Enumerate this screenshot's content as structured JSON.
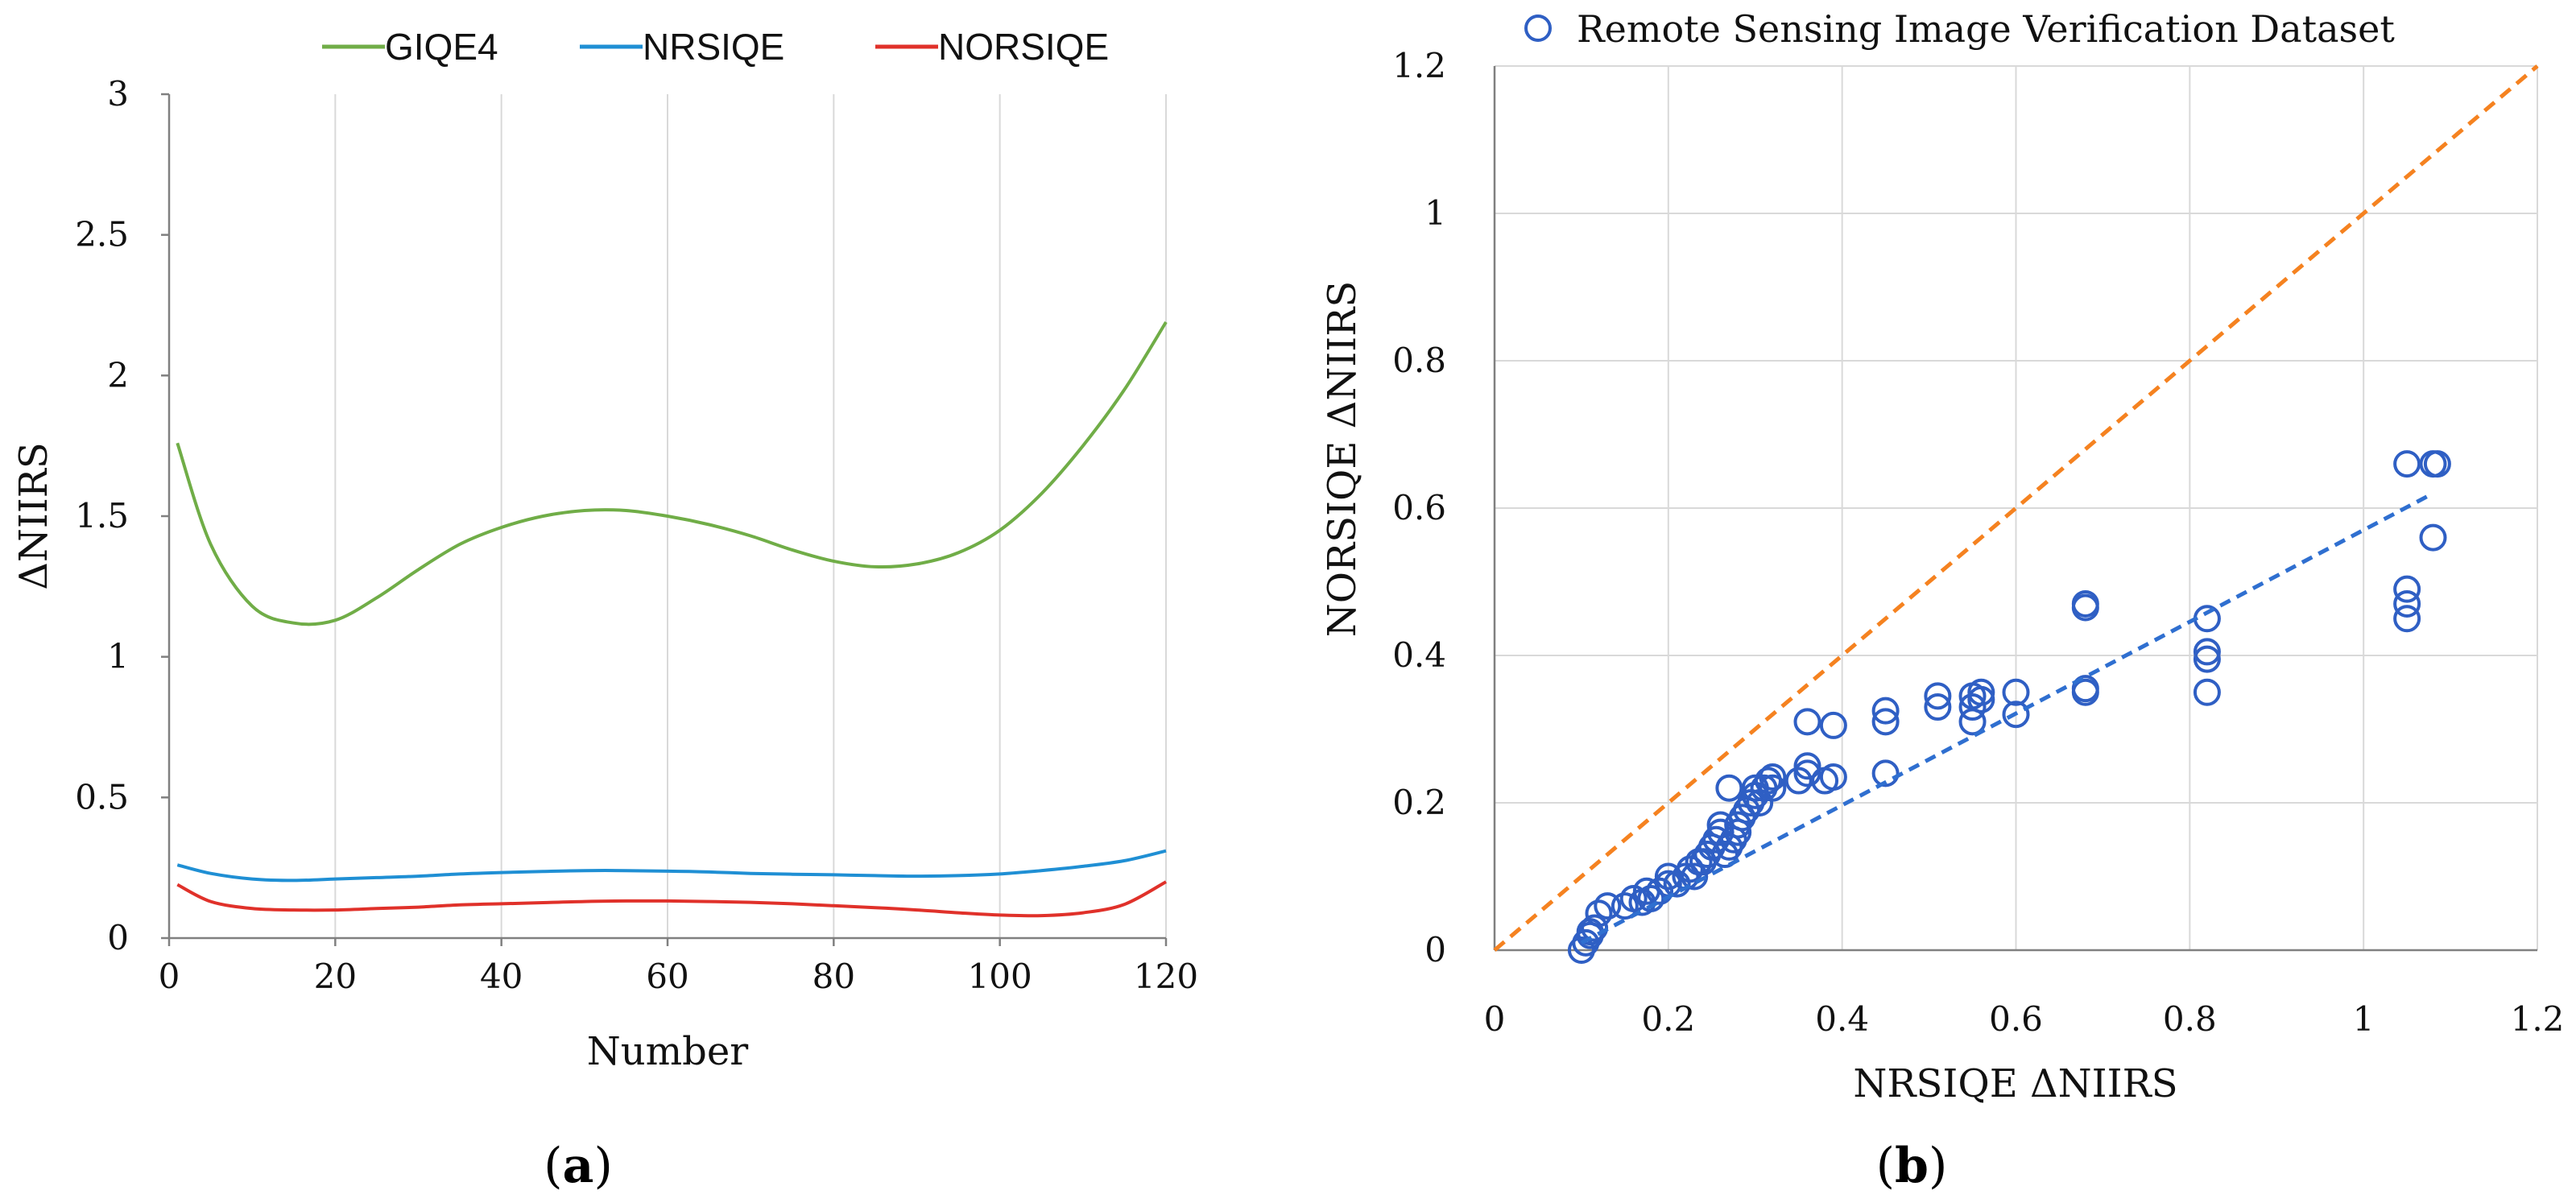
{
  "chart_data": [
    {
      "type": "line",
      "panel_label_open": "(",
      "panel_label_letter": "a",
      "panel_label_close": ")",
      "title": "",
      "xlabel": "Number",
      "ylabel": "ΔNIIRS",
      "xlim": [
        0,
        120
      ],
      "ylim": [
        0,
        3
      ],
      "xticks": [
        0,
        20,
        40,
        60,
        80,
        100,
        120
      ],
      "xtick_labels": [
        "0",
        "20",
        "40",
        "60",
        "80",
        "100",
        "120"
      ],
      "yticks": [
        0,
        0.5,
        1,
        1.5,
        2,
        2.5,
        3
      ],
      "ytick_labels": [
        "0",
        "0.5",
        "1",
        "1.5",
        "2",
        "2.5",
        "3"
      ],
      "grid": "vertical",
      "legend_position": "top",
      "x": [
        1,
        5,
        10,
        15,
        20,
        25,
        30,
        35,
        40,
        45,
        50,
        55,
        60,
        65,
        70,
        75,
        80,
        85,
        90,
        95,
        100,
        105,
        110,
        115,
        120
      ],
      "series": [
        {
          "name": "GIQE4",
          "color": "#70ad47",
          "values": [
            1.76,
            1.4,
            1.18,
            1.12,
            1.13,
            1.21,
            1.31,
            1.4,
            1.46,
            1.5,
            1.52,
            1.52,
            1.5,
            1.47,
            1.43,
            1.38,
            1.34,
            1.32,
            1.33,
            1.37,
            1.45,
            1.58,
            1.75,
            1.95,
            2.19
          ]
        },
        {
          "name": "NRSIQE",
          "color": "#1f8fd4",
          "values": [
            0.26,
            0.23,
            0.21,
            0.205,
            0.21,
            0.215,
            0.22,
            0.228,
            0.233,
            0.237,
            0.24,
            0.24,
            0.238,
            0.235,
            0.23,
            0.227,
            0.225,
            0.222,
            0.22,
            0.222,
            0.228,
            0.24,
            0.255,
            0.275,
            0.31
          ]
        },
        {
          "name": "NORSIQE",
          "color": "#e0312a",
          "values": [
            0.19,
            0.13,
            0.105,
            0.1,
            0.1,
            0.105,
            0.11,
            0.118,
            0.122,
            0.126,
            0.13,
            0.132,
            0.132,
            0.13,
            0.127,
            0.122,
            0.115,
            0.108,
            0.1,
            0.09,
            0.082,
            0.08,
            0.09,
            0.12,
            0.2
          ]
        }
      ]
    },
    {
      "type": "scatter",
      "panel_label_open": "(",
      "panel_label_letter": "b",
      "panel_label_close": ")",
      "title": "",
      "xlabel": "NRSIQE ΔNIIRS",
      "ylabel": "NORSIQE ΔNIIRS",
      "xlim": [
        0,
        1.2
      ],
      "ylim": [
        0,
        1.2
      ],
      "xticks": [
        0,
        0.2,
        0.4,
        0.6,
        0.8,
        1,
        1.2
      ],
      "xtick_labels": [
        "0",
        "0.2",
        "0.4",
        "0.6",
        "0.8",
        "1",
        "1.2"
      ],
      "yticks": [
        0,
        0.2,
        0.4,
        0.6,
        0.8,
        1,
        1.2
      ],
      "ytick_labels": [
        "0",
        "0.2",
        "0.4",
        "0.6",
        "0.8",
        "1",
        "1.2"
      ],
      "grid": "both",
      "legend_position": "top-right",
      "legend": "Remote Sensing Image Verification Dataset",
      "marker_color": "#2f5fc4",
      "trendline": {
        "color": "#2f6fd0",
        "x": [
          0.1,
          1.08
        ],
        "y": [
          0.01,
          0.62
        ]
      },
      "identity_line": {
        "color": "#f58220",
        "x": [
          0,
          1.2
        ],
        "y": [
          0,
          1.2
        ]
      },
      "points": [
        [
          0.1,
          0.0
        ],
        [
          0.105,
          0.01
        ],
        [
          0.11,
          0.02
        ],
        [
          0.11,
          0.025
        ],
        [
          0.115,
          0.03
        ],
        [
          0.12,
          0.05
        ],
        [
          0.13,
          0.06
        ],
        [
          0.15,
          0.06
        ],
        [
          0.16,
          0.07
        ],
        [
          0.17,
          0.065
        ],
        [
          0.175,
          0.08
        ],
        [
          0.18,
          0.07
        ],
        [
          0.19,
          0.08
        ],
        [
          0.2,
          0.09
        ],
        [
          0.2,
          0.1
        ],
        [
          0.21,
          0.09
        ],
        [
          0.22,
          0.1
        ],
        [
          0.225,
          0.11
        ],
        [
          0.23,
          0.1
        ],
        [
          0.235,
          0.12
        ],
        [
          0.24,
          0.12
        ],
        [
          0.245,
          0.13
        ],
        [
          0.25,
          0.14
        ],
        [
          0.255,
          0.15
        ],
        [
          0.26,
          0.16
        ],
        [
          0.26,
          0.17
        ],
        [
          0.265,
          0.13
        ],
        [
          0.27,
          0.14
        ],
        [
          0.27,
          0.22
        ],
        [
          0.275,
          0.15
        ],
        [
          0.28,
          0.16
        ],
        [
          0.28,
          0.17
        ],
        [
          0.285,
          0.18
        ],
        [
          0.29,
          0.19
        ],
        [
          0.295,
          0.2
        ],
        [
          0.3,
          0.21
        ],
        [
          0.3,
          0.22
        ],
        [
          0.305,
          0.2
        ],
        [
          0.31,
          0.22
        ],
        [
          0.315,
          0.23
        ],
        [
          0.32,
          0.22
        ],
        [
          0.32,
          0.235
        ],
        [
          0.35,
          0.23
        ],
        [
          0.36,
          0.24
        ],
        [
          0.36,
          0.25
        ],
        [
          0.36,
          0.31
        ],
        [
          0.38,
          0.23
        ],
        [
          0.39,
          0.235
        ],
        [
          0.39,
          0.305
        ],
        [
          0.45,
          0.24
        ],
        [
          0.45,
          0.31
        ],
        [
          0.45,
          0.325
        ],
        [
          0.51,
          0.33
        ],
        [
          0.51,
          0.345
        ],
        [
          0.55,
          0.31
        ],
        [
          0.55,
          0.33
        ],
        [
          0.55,
          0.345
        ],
        [
          0.56,
          0.35
        ],
        [
          0.56,
          0.34
        ],
        [
          0.6,
          0.32
        ],
        [
          0.6,
          0.35
        ],
        [
          0.68,
          0.35
        ],
        [
          0.68,
          0.355
        ],
        [
          0.68,
          0.47
        ],
        [
          0.68,
          0.465
        ],
        [
          0.82,
          0.35
        ],
        [
          0.82,
          0.395
        ],
        [
          0.82,
          0.405
        ],
        [
          0.82,
          0.45
        ],
        [
          1.05,
          0.45
        ],
        [
          1.05,
          0.47
        ],
        [
          1.05,
          0.49
        ],
        [
          1.05,
          0.66
        ],
        [
          1.08,
          0.56
        ],
        [
          1.08,
          0.66
        ],
        [
          1.085,
          0.66
        ]
      ]
    }
  ]
}
